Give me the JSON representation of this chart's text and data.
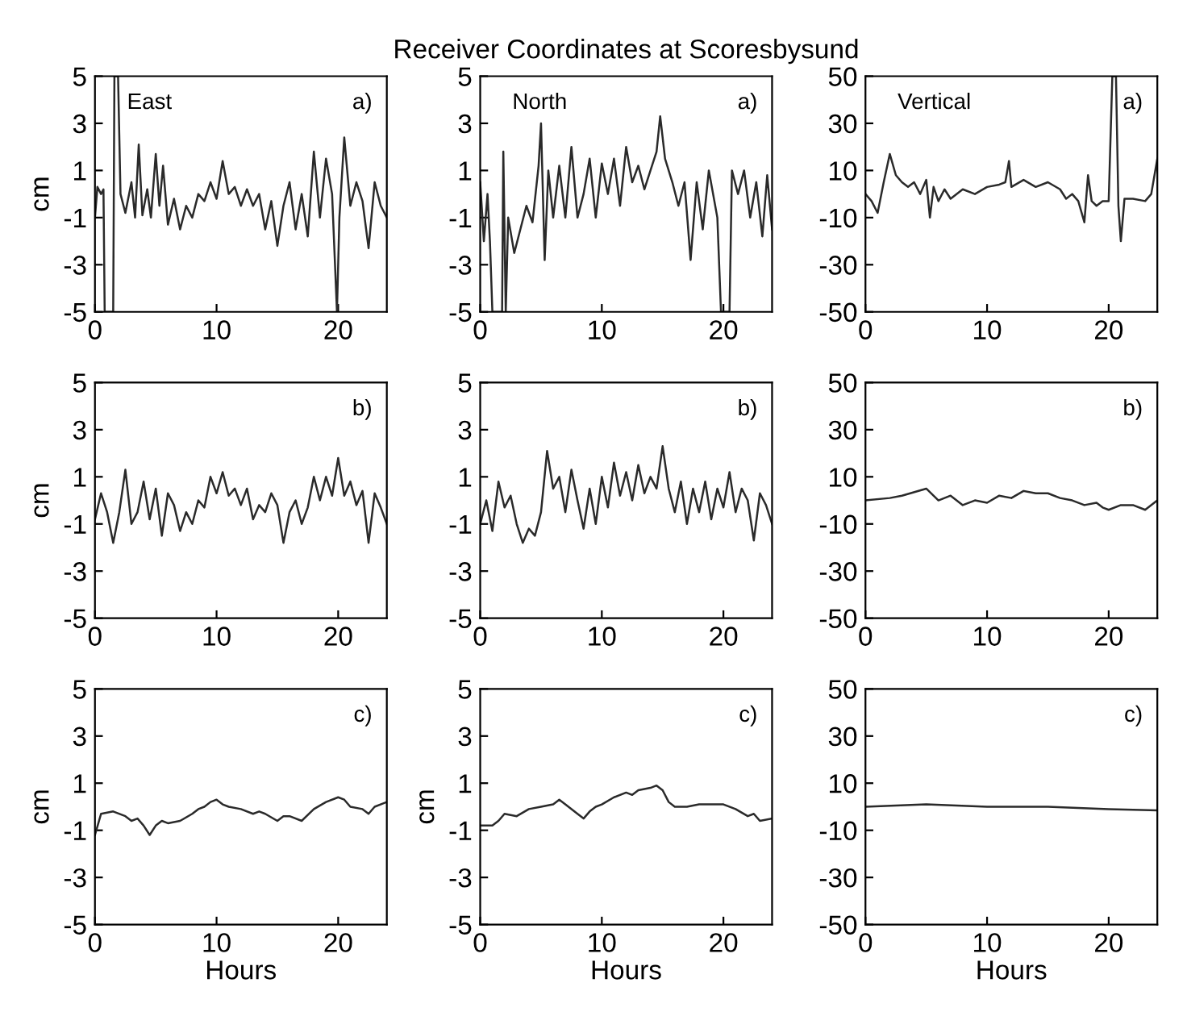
{
  "chart_data": [
    {
      "type": "line",
      "ylabel": "cm",
      "annotations": [
        "East",
        "a)"
      ],
      "xlim": [
        0,
        24
      ],
      "xticks": [
        0,
        10,
        20
      ],
      "ylim": [
        -5,
        5
      ],
      "yticks": [
        -5,
        -3,
        -1,
        1,
        3,
        5
      ],
      "series": [
        {
          "color": "#2a2a2a",
          "x": [
            0,
            0.2,
            0.5,
            0.7,
            0.8,
            1.5,
            1.6,
            1.9,
            2.1,
            2.5,
            3,
            3.3,
            3.6,
            3.9,
            4.3,
            4.6,
            5,
            5.3,
            5.6,
            6,
            6.5,
            7,
            7.5,
            8,
            8.5,
            9,
            9.5,
            10,
            10.5,
            11,
            11.5,
            12,
            12.5,
            13,
            13.5,
            14,
            14.5,
            15,
            15.5,
            16,
            16.5,
            17,
            17.5,
            18,
            18.5,
            19,
            19.5,
            19.9,
            20.1,
            20.5,
            21,
            21.5,
            22,
            22.5,
            23,
            23.5,
            24
          ],
          "values": [
            -1,
            0.3,
            0,
            0.2,
            -5,
            -5,
            5,
            5,
            0,
            -0.8,
            0.5,
            -1,
            2.1,
            -0.9,
            0.2,
            -1,
            1.7,
            -0.5,
            1.2,
            -1.3,
            -0.2,
            -1.5,
            -0.5,
            -1,
            0,
            -0.3,
            0.5,
            -0.2,
            1.4,
            0,
            0.3,
            -0.5,
            0.2,
            -0.5,
            0,
            -1.5,
            -0.3,
            -2.2,
            -0.5,
            0.5,
            -1.5,
            0,
            -1.8,
            1.8,
            -1,
            1.5,
            0,
            -5,
            -1,
            2.4,
            -0.5,
            0.5,
            -0.3,
            -2.3,
            0.5,
            -0.5,
            -1
          ]
        }
      ]
    },
    {
      "type": "line",
      "title": "Receiver Coordinates at Scoresbysund",
      "annotations": [
        "North",
        "a)"
      ],
      "xlim": [
        0,
        24
      ],
      "xticks": [
        0,
        10,
        20
      ],
      "ylim": [
        -5,
        5
      ],
      "yticks": [
        -5,
        -3,
        -1,
        1,
        3,
        5
      ],
      "series": [
        {
          "color": "#2a2a2a",
          "x": [
            0,
            0.3,
            0.6,
            0.8,
            1,
            1.8,
            1.9,
            2.1,
            2.3,
            2.8,
            3.3,
            3.8,
            4.3,
            4.8,
            5,
            5.3,
            5.6,
            6,
            6.5,
            7,
            7.5,
            8,
            8.5,
            9,
            9.5,
            10,
            10.5,
            11,
            11.5,
            12,
            12.5,
            13,
            13.5,
            14,
            14.5,
            14.8,
            15.2,
            15.8,
            16.3,
            16.8,
            17.3,
            17.8,
            18.3,
            18.8,
            19.5,
            19.8,
            20.5,
            20.7,
            21.2,
            21.7,
            22.2,
            22.7,
            23.2,
            23.6,
            24
          ],
          "values": [
            0.5,
            -2,
            0,
            -2,
            -5,
            -5,
            1.8,
            -5,
            -1,
            -2.5,
            -1.5,
            -0.5,
            -1.2,
            1.2,
            3,
            -2.8,
            1,
            -1,
            1.2,
            -1,
            2,
            -1,
            0,
            1.5,
            -1,
            1.3,
            0,
            1.5,
            -0.5,
            2,
            0.5,
            1.2,
            0.2,
            1,
            1.8,
            3.3,
            1.5,
            0.5,
            -0.5,
            0.5,
            -2.8,
            0.5,
            -1.5,
            1,
            -1,
            -5,
            -5,
            1,
            0,
            1,
            -1,
            0.5,
            -1.8,
            0.8,
            -1.5
          ]
        }
      ]
    },
    {
      "type": "line",
      "annotations": [
        "Vertical",
        "a)"
      ],
      "xlim": [
        0,
        24
      ],
      "xticks": [
        0,
        10,
        20
      ],
      "ylim": [
        -50,
        50
      ],
      "yticks": [
        -50,
        -30,
        -10,
        10,
        30,
        50
      ],
      "series": [
        {
          "color": "#2a2a2a",
          "x": [
            0,
            0.5,
            1,
            1.5,
            2,
            2.5,
            3,
            3.5,
            4,
            4.5,
            5,
            5.3,
            5.6,
            6,
            6.5,
            7,
            8,
            9,
            10,
            11,
            11.5,
            11.8,
            12,
            13,
            14,
            15,
            16,
            16.5,
            17,
            17.5,
            18,
            18.3,
            18.6,
            19,
            19.5,
            20,
            20.3,
            20.6,
            20.8,
            21,
            21.3,
            22,
            23,
            23.5,
            24
          ],
          "values": [
            0,
            -3,
            -8,
            5,
            17,
            8,
            5,
            3,
            5,
            0,
            6,
            -10,
            3,
            -3,
            2,
            -2,
            2,
            0,
            3,
            4,
            5,
            14,
            3,
            6,
            3,
            5,
            2,
            -2,
            0,
            -3,
            -12,
            8,
            -3,
            -5,
            -3,
            -3,
            50,
            50,
            -5,
            -20,
            -2,
            -2,
            -3,
            0,
            15
          ]
        }
      ]
    },
    {
      "type": "line",
      "ylabel": "cm",
      "annotations": [
        "b)"
      ],
      "xlim": [
        0,
        24
      ],
      "xticks": [
        0,
        10,
        20
      ],
      "ylim": [
        -5,
        5
      ],
      "yticks": [
        -5,
        -3,
        -1,
        1,
        3,
        5
      ],
      "series": [
        {
          "color": "#2a2a2a",
          "x": [
            0,
            0.5,
            1,
            1.5,
            2,
            2.5,
            3,
            3.5,
            4,
            4.5,
            5,
            5.5,
            6,
            6.5,
            7,
            7.5,
            8,
            8.5,
            9,
            9.5,
            10,
            10.5,
            11,
            11.5,
            12,
            12.5,
            13,
            13.5,
            14,
            14.5,
            15,
            15.5,
            16,
            16.5,
            17,
            17.5,
            18,
            18.5,
            19,
            19.5,
            20,
            20.5,
            21,
            21.5,
            22,
            22.5,
            23,
            23.5,
            24
          ],
          "values": [
            -0.8,
            0.3,
            -0.5,
            -1.8,
            -0.5,
            1.3,
            -1,
            -0.5,
            0.8,
            -0.8,
            0.5,
            -1.5,
            0.3,
            -0.2,
            -1.3,
            -0.5,
            -1,
            0,
            -0.3,
            1,
            0.3,
            1.2,
            0.2,
            0.5,
            -0.2,
            0.5,
            -0.8,
            -0.2,
            -0.5,
            0.3,
            -0.2,
            -1.8,
            -0.5,
            0,
            -1,
            -0.3,
            1,
            0,
            1,
            0.2,
            1.8,
            0.2,
            0.8,
            -0.2,
            0.4,
            -1.8,
            0.3,
            -0.3,
            -1
          ]
        }
      ]
    },
    {
      "type": "line",
      "annotations": [
        "b)"
      ],
      "xlim": [
        0,
        24
      ],
      "xticks": [
        0,
        10,
        20
      ],
      "ylim": [
        -5,
        5
      ],
      "yticks": [
        -5,
        -3,
        -1,
        1,
        3,
        5
      ],
      "series": [
        {
          "color": "#2a2a2a",
          "x": [
            0,
            0.5,
            1,
            1.5,
            2,
            2.5,
            3,
            3.5,
            4,
            4.5,
            5,
            5.5,
            6,
            6.5,
            7,
            7.5,
            8,
            8.5,
            9,
            9.5,
            10,
            10.5,
            11,
            11.5,
            12,
            12.5,
            13,
            13.5,
            14,
            14.5,
            15,
            15.5,
            16,
            16.5,
            17,
            17.5,
            18,
            18.5,
            19,
            19.5,
            20,
            20.5,
            21,
            21.5,
            22,
            22.5,
            23,
            23.5,
            24
          ],
          "values": [
            -1,
            0,
            -1.3,
            0.8,
            -0.3,
            0.2,
            -1,
            -1.8,
            -1.2,
            -1.5,
            -0.5,
            2.1,
            0.5,
            1,
            -0.5,
            1.3,
            0,
            -1.2,
            0.5,
            -1,
            1,
            -0.3,
            1.6,
            0.2,
            1.2,
            0,
            1.5,
            0.3,
            1,
            0.5,
            2.3,
            0.5,
            -0.5,
            0.8,
            -1,
            0.5,
            -0.5,
            0.8,
            -0.8,
            0.5,
            -0.3,
            1.2,
            -0.5,
            0.5,
            0,
            -1.7,
            0.3,
            -0.2,
            -1
          ]
        }
      ]
    },
    {
      "type": "line",
      "annotations": [
        "b)"
      ],
      "xlim": [
        0,
        24
      ],
      "xticks": [
        0,
        10,
        20
      ],
      "ylim": [
        -50,
        50
      ],
      "yticks": [
        -50,
        -30,
        -10,
        10,
        30,
        50
      ],
      "series": [
        {
          "color": "#2a2a2a",
          "x": [
            0,
            2,
            3,
            5,
            6,
            7,
            8,
            9,
            10,
            11,
            12,
            13,
            14,
            15,
            16,
            17,
            18,
            19,
            19.5,
            20,
            21,
            22,
            23,
            24
          ],
          "values": [
            0,
            1,
            2,
            5,
            0,
            2,
            -2,
            0,
            -1,
            2,
            1,
            4,
            3,
            3,
            1,
            0,
            -2,
            -1,
            -3,
            -4,
            -2,
            -2,
            -4,
            0
          ]
        }
      ]
    },
    {
      "type": "line",
      "ylabel": "cm",
      "xlabel": "Hours",
      "annotations": [
        "c)"
      ],
      "xlim": [
        0,
        24
      ],
      "xticks": [
        0,
        10,
        20
      ],
      "ylim": [
        -5,
        5
      ],
      "yticks": [
        -5,
        -3,
        -1,
        1,
        3,
        5
      ],
      "series": [
        {
          "color": "#2a2a2a",
          "x": [
            0,
            0.5,
            1.5,
            2.5,
            3,
            3.5,
            4,
            4.5,
            5,
            5.5,
            6,
            7,
            8,
            8.5,
            9,
            9.5,
            10,
            10.5,
            11,
            12,
            13,
            13.5,
            14,
            15,
            15.5,
            16,
            17,
            18,
            19,
            20,
            20.5,
            21,
            22,
            22.5,
            23,
            24
          ],
          "values": [
            -1.2,
            -0.3,
            -0.2,
            -0.4,
            -0.6,
            -0.5,
            -0.8,
            -1.2,
            -0.8,
            -0.6,
            -0.7,
            -0.6,
            -0.3,
            -0.1,
            0,
            0.2,
            0.3,
            0.1,
            0,
            -0.1,
            -0.3,
            -0.2,
            -0.3,
            -0.6,
            -0.4,
            -0.4,
            -0.6,
            -0.1,
            0.2,
            0.4,
            0.3,
            0,
            -0.1,
            -0.3,
            0,
            0.2
          ]
        }
      ]
    },
    {
      "type": "line",
      "ylabel": "cm",
      "xlabel": "Hours",
      "annotations": [
        "c)"
      ],
      "xlim": [
        0,
        24
      ],
      "xticks": [
        0,
        10,
        20
      ],
      "ylim": [
        -5,
        5
      ],
      "yticks": [
        -5,
        -3,
        -1,
        1,
        3,
        5
      ],
      "series": [
        {
          "color": "#2a2a2a",
          "x": [
            0,
            1,
            1.5,
            2,
            3,
            4,
            5,
            6,
            6.5,
            7,
            8,
            8.5,
            9,
            9.5,
            10,
            11,
            12,
            12.5,
            13,
            14,
            14.5,
            15,
            15.5,
            16,
            17,
            18,
            19,
            20,
            21,
            22,
            22.5,
            23,
            24
          ],
          "values": [
            -0.8,
            -0.8,
            -0.6,
            -0.3,
            -0.4,
            -0.1,
            0,
            0.1,
            0.3,
            0.1,
            -0.3,
            -0.5,
            -0.2,
            0,
            0.1,
            0.4,
            0.6,
            0.5,
            0.7,
            0.8,
            0.9,
            0.7,
            0.2,
            0,
            0,
            0.1,
            0.1,
            0.1,
            -0.1,
            -0.4,
            -0.3,
            -0.6,
            -0.5
          ]
        }
      ]
    },
    {
      "type": "line",
      "xlabel": "Hours",
      "annotations": [
        "c)"
      ],
      "xlim": [
        0,
        24
      ],
      "xticks": [
        0,
        10,
        20
      ],
      "ylim": [
        -50,
        50
      ],
      "yticks": [
        -50,
        -30,
        -10,
        10,
        30,
        50
      ],
      "series": [
        {
          "color": "#2a2a2a",
          "x": [
            0,
            5,
            10,
            15,
            20,
            24
          ],
          "values": [
            0,
            1,
            0,
            0,
            -1,
            -1.5
          ]
        }
      ]
    }
  ]
}
